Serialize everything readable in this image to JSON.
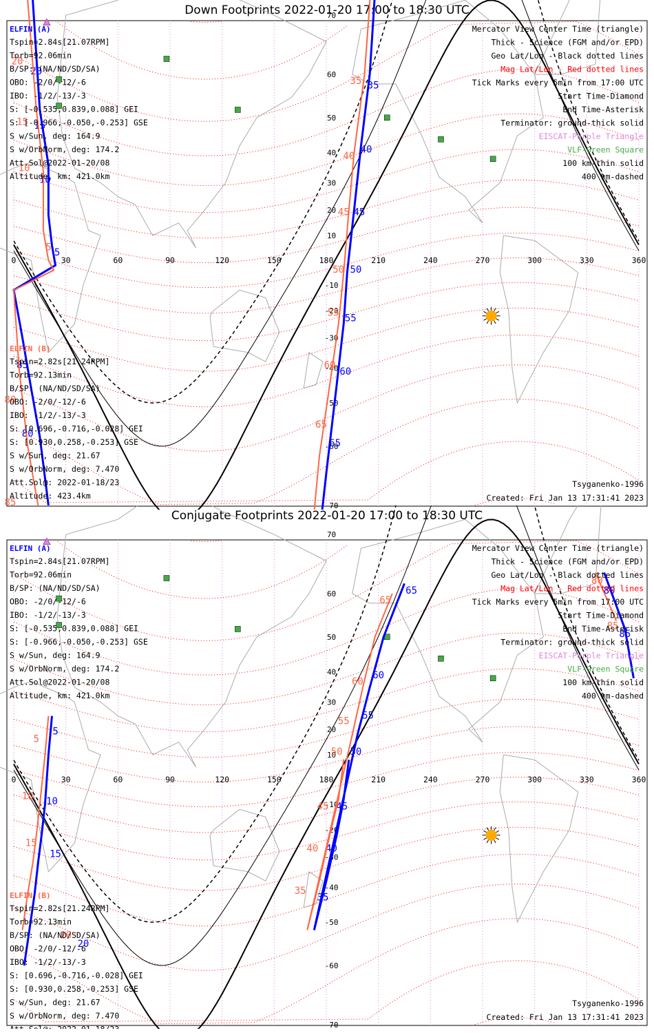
{
  "panels": [
    {
      "id": "down",
      "title": "Down Footprints 2022-01-20 17:00 to 18:30 UTC",
      "footer_left": "Tsyganenko-1996",
      "footer_right": "Created: Fri Jan 13 17:31:41 2023"
    },
    {
      "id": "conjugate",
      "title": "Conjugate Footprints 2022-01-20 17:00 to 18:30 UTC",
      "footer_left": "Tsyganenko-1996",
      "footer_right": "Created: Fri Jan 13 17:31:41 2023"
    }
  ],
  "legend": [
    {
      "text": "Mercator View Center Time (triangle)",
      "color": "#000000"
    },
    {
      "text": "Thick - Science (FGM and/or EPD)",
      "color": "#000000"
    },
    {
      "text": "Geo Lat/Lon - Black dotted lines",
      "color": "#000000"
    },
    {
      "text": "Mag Lat/Lon - Red dotted lines",
      "color": "#ff0000"
    },
    {
      "text": "Tick Marks every 5min from 17:00 UTC",
      "color": "#000000"
    },
    {
      "text": "Start Time-Diamond",
      "color": "#000000"
    },
    {
      "text": "End Time-Asterisk",
      "color": "#000000"
    },
    {
      "text": "Terminator: ground-thick solid",
      "color": "#000000"
    },
    {
      "text": "EISCAT-Purple Triangle",
      "color": "#dd88dd"
    },
    {
      "text": "VLF-Green Square",
      "color": "#44aa44"
    },
    {
      "text": "100 km-thin solid",
      "color": "#000000"
    },
    {
      "text": "400 km-dashed",
      "color": "#000000"
    }
  ],
  "elfin_a": {
    "name": "ELFIN (A)",
    "color": "#0000ff",
    "lines": [
      "Tspin=2.84s[21.07RPM]",
      "Torb=92.06min",
      "B/SP: (NA/ND/SD/SA)",
      "OBO: -2/0/-12/-6",
      "IBO: -1/2/-13/-3",
      "S: [-0.535,0.839,0.088] GEI",
      "S: [-0.966,-0.050,-0.253] GSE",
      "S w/Sun, deg: 164.9",
      "S w/OrbNorm, deg: 174.2",
      "Att.Sol@2022-01-20/08",
      "Altitude, km: 421.0km"
    ]
  },
  "elfin_b": {
    "name": "ELFIN (B)",
    "color": "#ff6644",
    "lines": [
      "Tspin=2.82s[21.24RPM]",
      "Torb=92.13min",
      "B/SP: (NA/ND/SD/SA)",
      "OBO: -2/0/-12/-6",
      "IBO: -1/2/-13/-3",
      "S: [0.696,-0.716,-0.028] GEI",
      "S: [0.930,0.258,-0.253] GSE",
      "S w/Sun, deg: 21.67",
      "S w/OrbNorm, deg: 7.470",
      "Att.Sol@: 2022-01-18/23",
      "Altitude: 423.4km"
    ]
  },
  "chart_data": [
    {
      "type": "line",
      "title": "Down Footprints 2022-01-20 17:00 to 18:30 UTC",
      "projection": "mercator",
      "x_ticks": [
        0,
        30,
        60,
        90,
        120,
        150,
        180,
        210,
        240,
        270,
        300,
        330,
        360
      ],
      "lat_labels": [
        70,
        60,
        50,
        40,
        30,
        20,
        10,
        -10,
        -20,
        -30,
        -40,
        -50,
        -60,
        -70
      ],
      "subsolar_point": {
        "lon": 275,
        "lat": -22
      },
      "vlf_stations": [
        {
          "lon": 88,
          "lat": 63
        },
        {
          "lon": 26,
          "lat": 59
        },
        {
          "lon": 26,
          "lat": 53
        },
        {
          "lon": 129,
          "lat": 52
        },
        {
          "lon": 215,
          "lat": 50
        },
        {
          "lon": 246,
          "lat": 44
        },
        {
          "lon": 276,
          "lat": 38
        }
      ],
      "eiscat_stations": [
        {
          "lon": 19,
          "lat": 69
        }
      ],
      "series": [
        {
          "name": "ELFIN (A)",
          "color": "#0000ff",
          "points": [
            {
              "lon": 0,
              "lat": 85
            },
            {
              "lon": 10,
              "lat": 75
            },
            {
              "lon": 15,
              "lat": 52
            },
            {
              "lon": 20,
              "lat": 36
            },
            {
              "lon": 20,
              "lat": 18
            },
            {
              "lon": 22,
              "lat": 6
            },
            {
              "lon": 24,
              "lat": -2
            },
            {
              "lon": 0,
              "lat": -12
            },
            {
              "lon": 5,
              "lat": -30
            },
            {
              "lon": 10,
              "lat": -46
            },
            {
              "lon": 15,
              "lat": -58
            },
            {
              "lon": 20,
              "lat": -70
            },
            {
              "lon": 212,
              "lat": 82
            },
            {
              "lon": 205,
              "lat": 60
            },
            {
              "lon": 200,
              "lat": 42
            },
            {
              "lon": 196,
              "lat": 20
            },
            {
              "lon": 192,
              "lat": -5
            },
            {
              "lon": 190,
              "lat": -25
            },
            {
              "lon": 186,
              "lat": -45
            },
            {
              "lon": 180,
              "lat": -65
            },
            {
              "lon": 174,
              "lat": -77
            }
          ],
          "tick_labels": [
            {
              "t": "5",
              "lon": 25,
              "lat": 2
            },
            {
              "t": "10",
              "lon": 18,
              "lat": 30
            },
            {
              "t": "15",
              "lon": 15,
              "lat": 47
            },
            {
              "t": "20",
              "lon": 13,
              "lat": 60
            },
            {
              "t": "30",
              "lon": 215,
              "lat": 78
            },
            {
              "t": "35",
              "lon": 207,
              "lat": 57
            },
            {
              "t": "40",
              "lon": 203,
              "lat": 40
            },
            {
              "t": "45",
              "lon": 199,
              "lat": 18
            },
            {
              "t": "50",
              "lon": 197,
              "lat": -5
            },
            {
              "t": "55",
              "lon": 194,
              "lat": -24
            },
            {
              "t": "60",
              "lon": 191,
              "lat": -42
            },
            {
              "t": "65",
              "lon": 185,
              "lat": -60
            },
            {
              "t": "80",
              "lon": 8,
              "lat": -58
            },
            {
              "t": "85",
              "lon": 5,
              "lat": -40
            }
          ]
        },
        {
          "name": "ELFIN (B)",
          "color": "#ff6644",
          "points": [
            {
              "lon": 0,
              "lat": 85
            },
            {
              "lon": 8,
              "lat": 72
            },
            {
              "lon": 13,
              "lat": 52
            },
            {
              "lon": 17,
              "lat": 34
            },
            {
              "lon": 17,
              "lat": 12
            },
            {
              "lon": 20,
              "lat": 0
            },
            {
              "lon": 23,
              "lat": -4
            },
            {
              "lon": 0,
              "lat": -12
            },
            {
              "lon": 3,
              "lat": -40
            },
            {
              "lon": 8,
              "lat": -60
            },
            {
              "lon": 14,
              "lat": -70
            },
            {
              "lon": 210,
              "lat": 82
            },
            {
              "lon": 202,
              "lat": 60
            },
            {
              "lon": 196,
              "lat": 40
            },
            {
              "lon": 193,
              "lat": 20
            },
            {
              "lon": 190,
              "lat": -5
            },
            {
              "lon": 187,
              "lat": -25
            },
            {
              "lon": 182,
              "lat": -45
            },
            {
              "lon": 176,
              "lat": -62
            },
            {
              "lon": 170,
              "lat": -77
            }
          ],
          "tick_labels": [
            {
              "t": "5",
              "lon": 20,
              "lat": 4
            },
            {
              "t": "10",
              "lon": 6,
              "lat": 34
            },
            {
              "t": "15",
              "lon": 5,
              "lat": 48
            },
            {
              "t": "20",
              "lon": 2,
              "lat": 62
            },
            {
              "t": "30",
              "lon": 208,
              "lat": 84
            },
            {
              "t": "35",
              "lon": 197,
              "lat": 58
            },
            {
              "t": "40",
              "lon": 193,
              "lat": 38
            },
            {
              "t": "45",
              "lon": 190,
              "lat": 18
            },
            {
              "t": "50",
              "lon": 187,
              "lat": -5
            },
            {
              "t": "55",
              "lon": 184,
              "lat": -22
            },
            {
              "t": "60",
              "lon": 182,
              "lat": -40
            },
            {
              "t": "65",
              "lon": 177,
              "lat": -56
            },
            {
              "t": "70",
              "lon": 166,
              "lat": -75
            },
            {
              "t": "80",
              "lon": -2,
              "lat": -50
            },
            {
              "t": "85",
              "lon": -2,
              "lat": -70
            }
          ]
        }
      ]
    },
    {
      "type": "line",
      "title": "Conjugate Footprints 2022-01-20 17:00 to 18:30 UTC",
      "projection": "mercator",
      "x_ticks": [
        0,
        30,
        60,
        90,
        120,
        150,
        180,
        210,
        240,
        270,
        300,
        330,
        360
      ],
      "lat_labels": [
        70,
        60,
        50,
        40,
        30,
        20,
        10,
        -10,
        -20,
        -30,
        -40,
        -50,
        -60,
        -70
      ],
      "subsolar_point": {
        "lon": 275,
        "lat": -22
      },
      "vlf_stations": [
        {
          "lon": 88,
          "lat": 63
        },
        {
          "lon": 26,
          "lat": 59
        },
        {
          "lon": 26,
          "lat": 53
        },
        {
          "lon": 129,
          "lat": 52
        },
        {
          "lon": 215,
          "lat": 50
        },
        {
          "lon": 246,
          "lat": 44
        },
        {
          "lon": 276,
          "lat": 38
        }
      ],
      "eiscat_stations": [
        {
          "lon": 19,
          "lat": 69
        }
      ],
      "series": [
        {
          "name": "ELFIN (A)",
          "color": "#0000ff",
          "points": [
            {
              "lon": 22,
              "lat": 25
            },
            {
              "lon": 20,
              "lat": 10
            },
            {
              "lon": 18,
              "lat": -10
            },
            {
              "lon": 16,
              "lat": -22
            },
            {
              "lon": 14,
              "lat": -32
            },
            {
              "lon": 12,
              "lat": -42
            },
            {
              "lon": 9,
              "lat": -52
            },
            {
              "lon": 6,
              "lat": -60
            },
            {
              "lon": 193,
              "lat": 8
            },
            {
              "lon": 190,
              "lat": -8
            },
            {
              "lon": 186,
              "lat": -22
            },
            {
              "lon": 180,
              "lat": -38
            },
            {
              "lon": 173,
              "lat": -52
            },
            {
              "lon": 198,
              "lat": 18
            },
            {
              "lon": 205,
              "lat": 35
            },
            {
              "lon": 213,
              "lat": 50
            },
            {
              "lon": 225,
              "lat": 62
            },
            {
              "lon": 340,
              "lat": 64
            },
            {
              "lon": 352,
              "lat": 52
            },
            {
              "lon": 357,
              "lat": 38
            }
          ],
          "tick_labels": [
            {
              "t": "5",
              "lon": 24,
              "lat": 18
            },
            {
              "t": "10",
              "lon": 22,
              "lat": -10
            },
            {
              "t": "15",
              "lon": 24,
              "lat": -30
            },
            {
              "t": "20",
              "lon": 40,
              "lat": -56
            },
            {
              "t": "35",
              "lon": 178,
              "lat": -44
            },
            {
              "t": "40",
              "lon": 183,
              "lat": -28
            },
            {
              "t": "45",
              "lon": 189,
              "lat": -12
            },
            {
              "t": "50",
              "lon": 197,
              "lat": 10
            },
            {
              "t": "55",
              "lon": 204,
              "lat": 24
            },
            {
              "t": "60",
              "lon": 210,
              "lat": 38
            },
            {
              "t": "65",
              "lon": 229,
              "lat": 60
            },
            {
              "t": "80",
              "lon": 343,
              "lat": 60
            },
            {
              "t": "85",
              "lon": 352,
              "lat": 50
            }
          ]
        },
        {
          "name": "ELFIN (B)",
          "color": "#ff6644",
          "points": [
            {
              "lon": 20,
              "lat": 25
            },
            {
              "lon": 18,
              "lat": 10
            },
            {
              "lon": 15,
              "lat": -10
            },
            {
              "lon": 13,
              "lat": -22
            },
            {
              "lon": 11,
              "lat": -32
            },
            {
              "lon": 8,
              "lat": -42
            },
            {
              "lon": 5,
              "lat": -52
            },
            {
              "lon": 190,
              "lat": 8
            },
            {
              "lon": 187,
              "lat": -8
            },
            {
              "lon": 182,
              "lat": -22
            },
            {
              "lon": 176,
              "lat": -38
            },
            {
              "lon": 169,
              "lat": -52
            },
            {
              "lon": 195,
              "lat": 18
            },
            {
              "lon": 201,
              "lat": 35
            },
            {
              "lon": 208,
              "lat": 50
            },
            {
              "lon": 218,
              "lat": 60
            },
            {
              "lon": 335,
              "lat": 64
            },
            {
              "lon": 347,
              "lat": 54
            }
          ],
          "tick_labels": [
            {
              "t": "5",
              "lon": 13,
              "lat": 15
            },
            {
              "t": "10",
              "lon": 8,
              "lat": -8
            },
            {
              "t": "15",
              "lon": 10,
              "lat": -26
            },
            {
              "t": "20",
              "lon": 30,
              "lat": -54
            },
            {
              "t": "35",
              "lon": 165,
              "lat": -42
            },
            {
              "t": "40",
              "lon": 172,
              "lat": -28
            },
            {
              "t": "45",
              "lon": 178,
              "lat": -12
            },
            {
              "t": "50",
              "lon": 186,
              "lat": 10
            },
            {
              "t": "55",
              "lon": 190,
              "lat": 22
            },
            {
              "t": "60",
              "lon": 198,
              "lat": 36
            },
            {
              "t": "65",
              "lon": 214,
              "lat": 58
            },
            {
              "t": "80",
              "lon": 336,
              "lat": 62
            },
            {
              "t": "85",
              "lon": 345,
              "lat": 52
            }
          ]
        }
      ]
    }
  ]
}
